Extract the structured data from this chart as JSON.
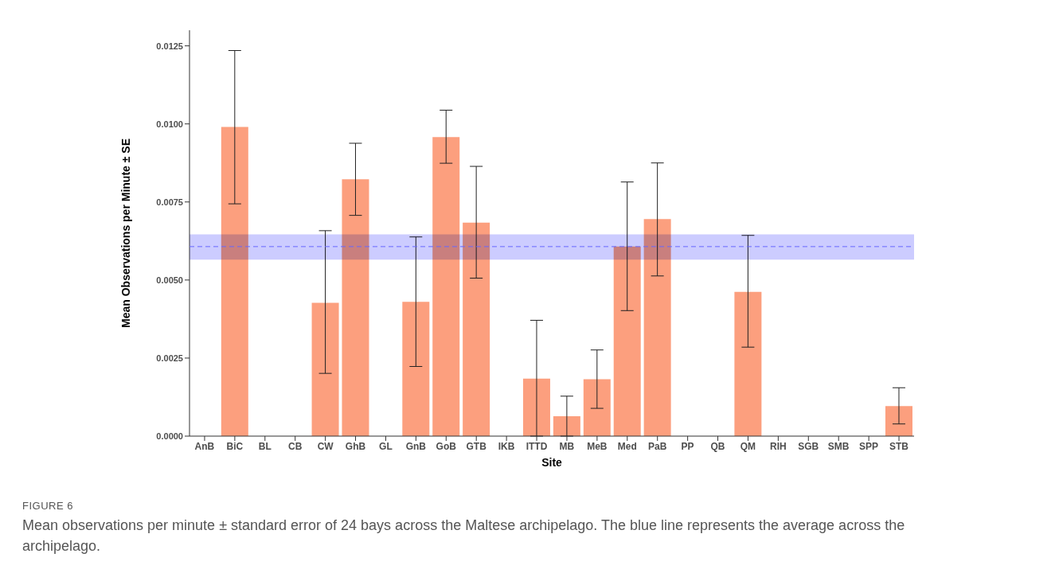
{
  "chart_data": {
    "type": "bar",
    "xlabel": "Site",
    "ylabel": "Mean Observations per Minute ± SE",
    "categories": [
      "AnB",
      "BiC",
      "BL",
      "CB",
      "CW",
      "GhB",
      "GL",
      "GnB",
      "GoB",
      "GTB",
      "IKB",
      "ITTD",
      "MB",
      "MeB",
      "Med",
      "PaB",
      "PP",
      "QB",
      "QM",
      "RIH",
      "SGB",
      "SMB",
      "SPP",
      "STB"
    ],
    "values": [
      null,
      0.0099,
      null,
      null,
      0.00427,
      0.00823,
      null,
      0.0043,
      0.00958,
      0.00684,
      null,
      0.00184,
      0.00064,
      0.00182,
      0.00607,
      0.00695,
      null,
      null,
      0.00462,
      null,
      null,
      null,
      null,
      0.00096
    ],
    "errors": [
      null,
      [
        0.00744,
        0.01235
      ],
      null,
      null,
      [
        0.00201,
        0.00658
      ],
      [
        0.00707,
        0.00938
      ],
      null,
      [
        0.00223,
        0.00638
      ],
      [
        0.00874,
        0.01044
      ],
      [
        0.00506,
        0.00864
      ],
      null,
      [
        0,
        0.00371
      ],
      [
        0,
        0.00128
      ],
      [
        0.00089,
        0.00276
      ],
      [
        0.00402,
        0.00814
      ],
      [
        0.00513,
        0.00875
      ],
      null,
      null,
      [
        0.00285,
        0.00643
      ],
      null,
      null,
      null,
      null,
      [
        0.00039,
        0.00155
      ]
    ],
    "color": "#fc9f7e",
    "ylim": [
      0,
      0.013
    ],
    "yticks": [
      {
        "value": 0,
        "label": "0.0000"
      },
      {
        "value": 0.0025,
        "label": "0.0025"
      },
      {
        "value": 0.005,
        "label": "0.0050"
      },
      {
        "value": 0.0075,
        "label": "0.0075"
      },
      {
        "value": 0.01,
        "label": "0.0100"
      },
      {
        "value": 0.0125,
        "label": "0.0125"
      }
    ],
    "grid": false,
    "legend": false,
    "ref_lines": [
      {
        "axis": "y",
        "value": 0.00607,
        "color": "#6666ff",
        "line_style": "dashed"
      }
    ],
    "bands": [
      {
        "axis": "y",
        "from": 0.00565,
        "to": 0.00646,
        "color": "#ccccff"
      }
    ],
    "annotations": [
      "FIGURE 6",
      "Mean observations per minute ± standard error of 24 bays across the Maltese archipelago. The blue line represents the average across the archipelago."
    ]
  }
}
